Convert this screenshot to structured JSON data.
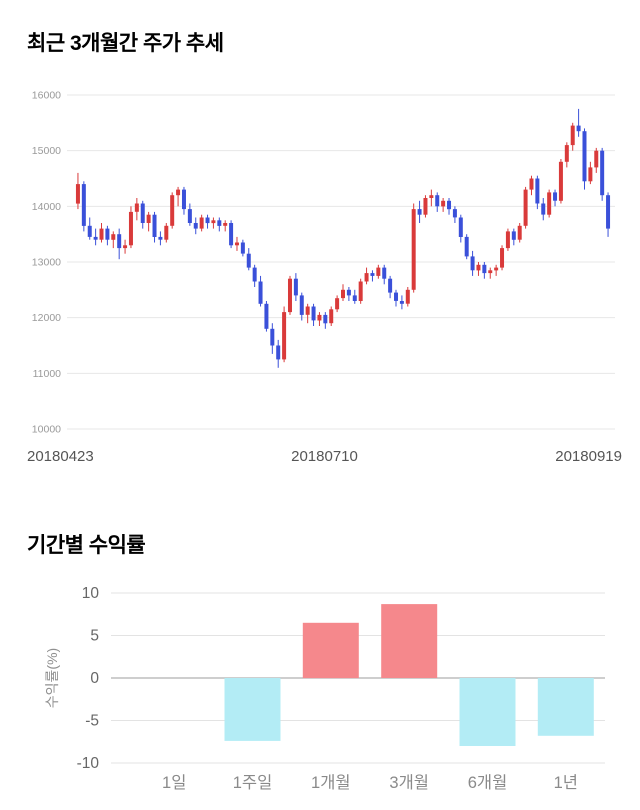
{
  "sections": {
    "price_trend_title": "최근 3개월간 주가 추세",
    "returns_title": "기간별 수익률"
  },
  "chart_data": [
    {
      "type": "candlestick",
      "title": "최근 3개월간 주가 추세",
      "ylim": [
        10000,
        16000
      ],
      "yticks": [
        16000,
        15000,
        14000,
        13000,
        12000,
        11000,
        10000
      ],
      "xticks": [
        "20180423",
        "20180710",
        "20180919"
      ],
      "grid": "horizontal",
      "up_color": "#d93a3a",
      "down_color": "#3a50d9",
      "candles": [
        [
          14050,
          14600,
          13950,
          14400
        ],
        [
          14400,
          14450,
          13550,
          13650
        ],
        [
          13650,
          13800,
          13400,
          13450
        ],
        [
          13450,
          13600,
          13300,
          13400
        ],
        [
          13400,
          13700,
          13350,
          13600
        ],
        [
          13600,
          13650,
          13300,
          13400
        ],
        [
          13400,
          13550,
          13250,
          13500
        ],
        [
          13500,
          13600,
          13050,
          13250
        ],
        [
          13250,
          13400,
          13150,
          13300
        ],
        [
          13300,
          14000,
          13250,
          13900
        ],
        [
          13900,
          14150,
          13750,
          14050
        ],
        [
          14050,
          14100,
          13600,
          13700
        ],
        [
          13700,
          13900,
          13550,
          13850
        ],
        [
          13850,
          13900,
          13350,
          13450
        ],
        [
          13450,
          13550,
          13300,
          13400
        ],
        [
          13400,
          13700,
          13350,
          13650
        ],
        [
          13650,
          14250,
          13600,
          14200
        ],
        [
          14200,
          14350,
          14000,
          14300
        ],
        [
          14300,
          14350,
          13850,
          13950
        ],
        [
          13950,
          14050,
          13650,
          13700
        ],
        [
          13700,
          13800,
          13500,
          13600
        ],
        [
          13600,
          13850,
          13550,
          13800
        ],
        [
          13800,
          13850,
          13600,
          13700
        ],
        [
          13700,
          13800,
          13600,
          13750
        ],
        [
          13750,
          13800,
          13550,
          13650
        ],
        [
          13650,
          13750,
          13550,
          13700
        ],
        [
          13700,
          13750,
          13250,
          13300
        ],
        [
          13300,
          13450,
          13200,
          13350
        ],
        [
          13350,
          13400,
          13100,
          13150
        ],
        [
          13150,
          13250,
          12850,
          12900
        ],
        [
          12900,
          12950,
          12550,
          12650
        ],
        [
          12650,
          12750,
          12200,
          12250
        ],
        [
          12250,
          12300,
          11750,
          11800
        ],
        [
          11800,
          11900,
          11350,
          11500
        ],
        [
          11500,
          11600,
          11100,
          11250
        ],
        [
          11250,
          12200,
          11200,
          12100
        ],
        [
          12100,
          12750,
          12050,
          12700
        ],
        [
          12700,
          12800,
          12300,
          12400
        ],
        [
          12400,
          12450,
          11950,
          12050
        ],
        [
          12050,
          12250,
          11900,
          12200
        ],
        [
          12200,
          12250,
          11850,
          11950
        ],
        [
          11950,
          12100,
          11850,
          12050
        ],
        [
          12050,
          12100,
          11800,
          11900
        ],
        [
          11900,
          12200,
          11850,
          12150
        ],
        [
          12150,
          12400,
          12100,
          12350
        ],
        [
          12350,
          12600,
          12300,
          12500
        ],
        [
          12500,
          12550,
          12300,
          12400
        ],
        [
          12400,
          12500,
          12250,
          12300
        ],
        [
          12300,
          12700,
          12250,
          12650
        ],
        [
          12650,
          12900,
          12600,
          12800
        ],
        [
          12800,
          12850,
          12650,
          12750
        ],
        [
          12750,
          12950,
          12700,
          12900
        ],
        [
          12900,
          12950,
          12600,
          12700
        ],
        [
          12700,
          12750,
          12350,
          12450
        ],
        [
          12450,
          12500,
          12200,
          12300
        ],
        [
          12300,
          12400,
          12150,
          12250
        ],
        [
          12250,
          12550,
          12200,
          12500
        ],
        [
          12500,
          14050,
          12450,
          13950
        ],
        [
          13950,
          14100,
          13700,
          13850
        ],
        [
          13850,
          14200,
          13800,
          14150
        ],
        [
          14150,
          14300,
          14000,
          14200
        ],
        [
          14200,
          14250,
          13900,
          14000
        ],
        [
          14000,
          14150,
          13900,
          14100
        ],
        [
          14100,
          14150,
          13850,
          13950
        ],
        [
          13950,
          14000,
          13700,
          13800
        ],
        [
          13800,
          13850,
          13350,
          13450
        ],
        [
          13450,
          13500,
          13050,
          13100
        ],
        [
          13100,
          13200,
          12750,
          12850
        ],
        [
          12850,
          13000,
          12750,
          12950
        ],
        [
          12950,
          13000,
          12700,
          12800
        ],
        [
          12800,
          12900,
          12700,
          12850
        ],
        [
          12850,
          12950,
          12750,
          12900
        ],
        [
          12900,
          13300,
          12850,
          13250
        ],
        [
          13250,
          13600,
          13200,
          13550
        ],
        [
          13550,
          13600,
          13300,
          13400
        ],
        [
          13400,
          13700,
          13350,
          13650
        ],
        [
          13650,
          14350,
          13600,
          14300
        ],
        [
          14300,
          14550,
          14200,
          14500
        ],
        [
          14500,
          14550,
          13950,
          14050
        ],
        [
          14050,
          14150,
          13750,
          13850
        ],
        [
          13850,
          14300,
          13800,
          14250
        ],
        [
          14250,
          14300,
          14000,
          14100
        ],
        [
          14100,
          14850,
          14050,
          14800
        ],
        [
          14800,
          15150,
          14700,
          15100
        ],
        [
          15100,
          15500,
          15000,
          15450
        ],
        [
          15450,
          15750,
          15250,
          15350
        ],
        [
          15350,
          15400,
          14300,
          14450
        ],
        [
          14450,
          14800,
          14400,
          14700
        ],
        [
          14700,
          15050,
          14600,
          15000
        ],
        [
          15000,
          15050,
          14100,
          14200
        ],
        [
          14200,
          14250,
          13450,
          13600
        ]
      ]
    },
    {
      "type": "bar",
      "title": "기간별 수익률",
      "ylabel": "수익률(%)",
      "ylim": [
        -10,
        10
      ],
      "yticks": [
        10,
        5,
        0,
        -5,
        -10
      ],
      "grid": "horizontal",
      "categories": [
        "1일",
        "1주일",
        "1개월",
        "3개월",
        "6개월",
        "1년"
      ],
      "values": [
        0,
        -7.4,
        6.5,
        8.7,
        -8.0,
        -6.8
      ],
      "positive_color": "#f5888c",
      "negative_color": "#b3ecf5"
    }
  ]
}
